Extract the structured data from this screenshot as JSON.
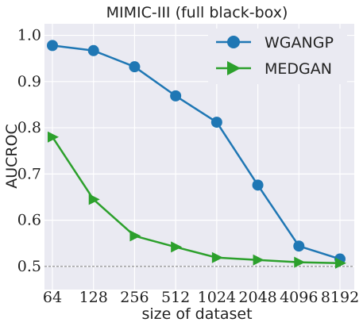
{
  "chart_data": {
    "type": "line",
    "title": "MIMIC-III (full black-box)",
    "xlabel": "size of dataset",
    "ylabel": "AUCROC",
    "categories": [
      "64",
      "128",
      "256",
      "512",
      "1024",
      "2048",
      "4096",
      "8192"
    ],
    "yticks": [
      "0.5",
      "0.6",
      "0.7",
      "0.8",
      "0.9",
      "1.0"
    ],
    "ylim": [
      0.45,
      1.025
    ],
    "grid": true,
    "legend_position": "top-right",
    "reference_line": 0.5,
    "series": [
      {
        "name": "WGANGP",
        "color": "#1f77b4",
        "marker": "circle",
        "values": [
          0.978,
          0.967,
          0.932,
          0.869,
          0.812,
          0.676,
          0.544,
          0.516
        ]
      },
      {
        "name": "MEDGAN",
        "color": "#2ca02c",
        "marker": "triangle-right",
        "values": [
          0.78,
          0.645,
          0.566,
          0.542,
          0.519,
          0.514,
          0.509,
          0.507
        ]
      }
    ]
  }
}
